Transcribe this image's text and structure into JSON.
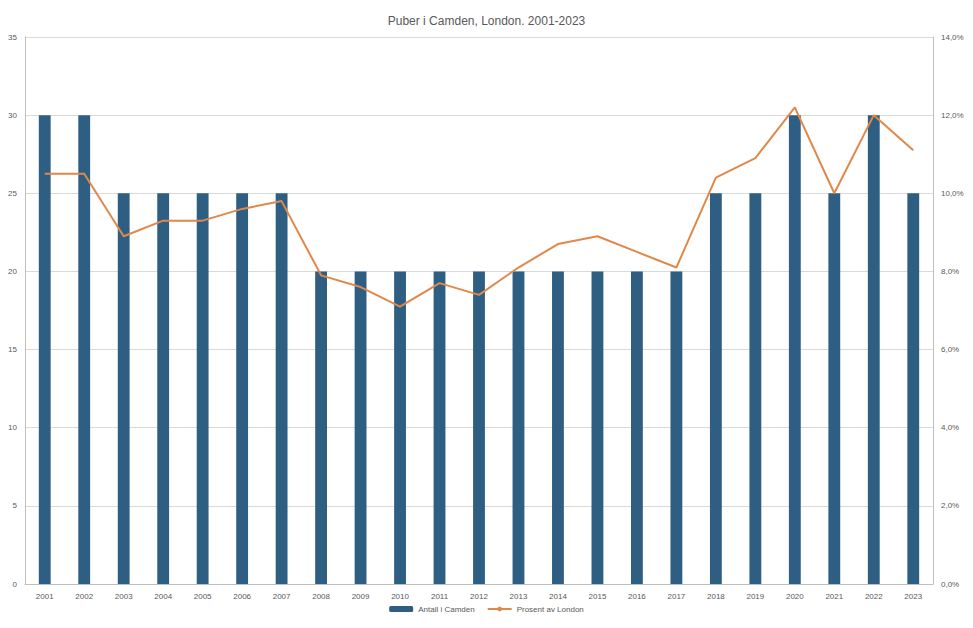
{
  "chart_data": {
    "type": "bar",
    "title": "Puber i Camden, London. 2001-2023",
    "categories": [
      "2001",
      "2002",
      "2003",
      "2004",
      "2005",
      "2006",
      "2007",
      "2008",
      "2009",
      "2010",
      "2011",
      "2012",
      "2013",
      "2014",
      "2015",
      "2016",
      "2017",
      "2018",
      "2019",
      "2020",
      "2021",
      "2022",
      "2023"
    ],
    "series": [
      {
        "name": "Antall i Camden",
        "type": "bar",
        "color": "#2e5f82",
        "values": [
          30,
          30,
          25,
          25,
          25,
          25,
          25,
          20,
          20,
          20,
          20,
          20,
          20,
          20,
          20,
          20,
          20,
          25,
          25,
          30,
          25,
          30,
          25
        ]
      },
      {
        "name": "Prosent av London",
        "type": "line",
        "color": "#e0884a",
        "axis": "y2",
        "marker": "none",
        "values": [
          10.5,
          10.5,
          8.9,
          9.3,
          9.3,
          9.6,
          9.8,
          7.9,
          7.6,
          7.1,
          7.7,
          7.4,
          8.1,
          8.7,
          8.9,
          8.5,
          8.1,
          10.4,
          10.9,
          12.2,
          10.0,
          12.0,
          11.1
        ]
      }
    ],
    "ylim": [
      0,
      35
    ],
    "yticks": [
      0,
      5,
      10,
      15,
      20,
      25,
      30,
      35
    ],
    "y2lim": [
      0,
      14
    ],
    "y2ticks": [
      {
        "value": 0,
        "label": "0,0%"
      },
      {
        "value": 2,
        "label": "2,0%"
      },
      {
        "value": 4,
        "label": "4,0%"
      },
      {
        "value": 6,
        "label": "6,0%"
      },
      {
        "value": 8,
        "label": "8,0%"
      },
      {
        "value": 10,
        "label": "10,0%"
      },
      {
        "value": 12,
        "label": "12,0%"
      },
      {
        "value": 14,
        "label": "14,0%"
      }
    ],
    "grid": true,
    "legend": "bottom"
  }
}
